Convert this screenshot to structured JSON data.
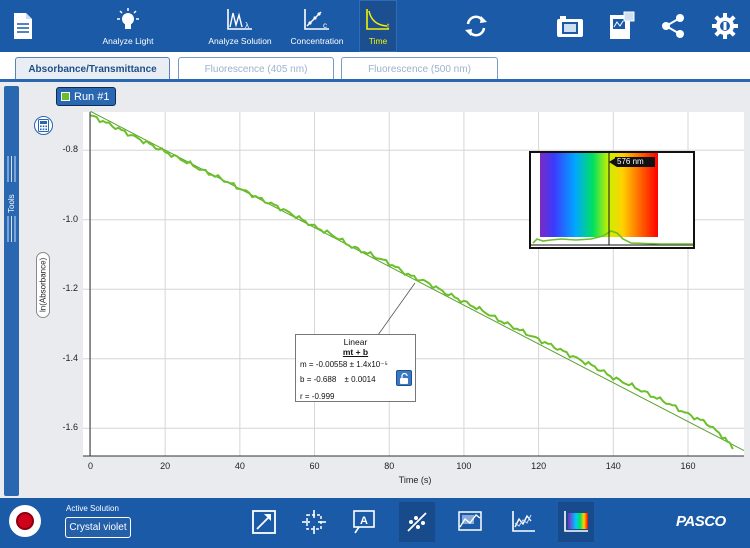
{
  "toolbar": {
    "analyze_light": "Analyze Light",
    "analyze_solution": "Analyze Solution",
    "concentration": "Concentration",
    "time": "Time"
  },
  "tabs": [
    {
      "label": "Absorbance/Transmittance",
      "active": true
    },
    {
      "label": "Fluorescence (405 nm)",
      "active": false
    },
    {
      "label": "Fluorescence (500 nm)",
      "active": false
    }
  ],
  "sidebar": {
    "tools_label": "Tools"
  },
  "run": {
    "label": "Run #1",
    "color": "#6bbf2a"
  },
  "chart_data": {
    "type": "line",
    "xlabel": "Time (s)",
    "ylabel": "ln(Absorbance)",
    "xlim": [
      -2,
      175
    ],
    "ylim": [
      -1.68,
      -0.69
    ],
    "x_ticks": [
      "0",
      "20",
      "40",
      "60",
      "80",
      "100",
      "120",
      "140",
      "160"
    ],
    "y_ticks": [
      "-0.8",
      "-1.0",
      "-1.2",
      "-1.4",
      "-1.6"
    ],
    "grid": true,
    "series": [
      {
        "name": "Run #1",
        "color": "#6bbf2a",
        "x": [
          0,
          5,
          10,
          15,
          20,
          25,
          30,
          35,
          40,
          45,
          50,
          55,
          60,
          65,
          70,
          75,
          80,
          85,
          90,
          95,
          100,
          105,
          110,
          115,
          120,
          125,
          130,
          135,
          140,
          145,
          150,
          155,
          160,
          165,
          170,
          172
        ],
        "y": [
          -0.7,
          -0.725,
          -0.752,
          -0.778,
          -0.805,
          -0.83,
          -0.858,
          -0.882,
          -0.91,
          -0.938,
          -0.962,
          -0.99,
          -1.02,
          -1.045,
          -1.078,
          -1.1,
          -1.125,
          -1.158,
          -1.18,
          -1.21,
          -1.236,
          -1.262,
          -1.292,
          -1.318,
          -1.345,
          -1.37,
          -1.398,
          -1.423,
          -1.455,
          -1.478,
          -1.505,
          -1.53,
          -1.56,
          -1.585,
          -1.63,
          -1.66
        ]
      }
    ],
    "fit": {
      "type": "linear",
      "title": "Linear",
      "equation": "mt + b",
      "m_label": "m",
      "m_value": "= -0.00558",
      "m_err": "± 1.4x10⁻⁵",
      "b_label": "b",
      "b_value": "= -0.688",
      "b_err": "± 0.0014",
      "r_text": "r = -0.999",
      "m": -0.00558,
      "b": -0.688
    }
  },
  "spectrum_inset": {
    "wavelength_label": "576 nm"
  },
  "bottom": {
    "active_solution_label": "Active Solution",
    "solution_name": "Crystal violet",
    "brand": "PASCO"
  }
}
